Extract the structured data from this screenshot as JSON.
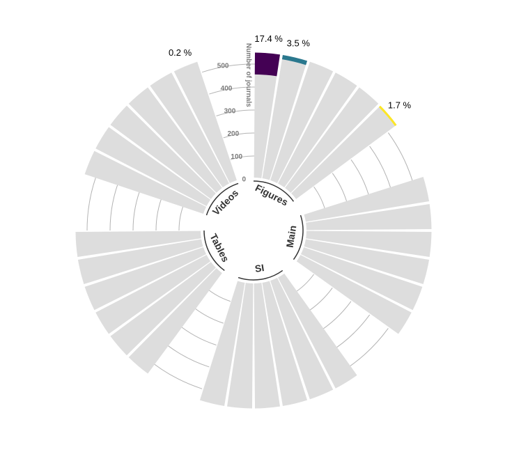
{
  "chart_data": {
    "type": "bar",
    "layout": "polar",
    "ylabel": "Number of journals",
    "ylim": [
      0,
      600
    ],
    "y_ticks": [
      "0",
      "100",
      "200",
      "300",
      "400",
      "500"
    ],
    "groups": [
      {
        "name": "Figures",
        "n_bars": 6
      },
      {
        "name": "Main",
        "n_bars": 6
      },
      {
        "name": "SI",
        "n_bars": 6
      },
      {
        "name": "Tables",
        "n_bars": 6
      },
      {
        "name": "Videos",
        "n_bars": 6
      }
    ],
    "total_values": [
      550,
      550,
      550,
      550,
      550,
      550,
      550,
      550,
      550,
      550,
      550,
      550,
      550,
      550,
      550,
      550,
      550,
      550,
      550,
      550,
      550,
      550,
      550,
      550,
      550,
      550,
      550,
      550,
      550,
      550
    ],
    "highlights": [
      {
        "bar_index": 0,
        "label": "17.4 %",
        "bottom": 455,
        "value": 550,
        "color": "#440154"
      },
      {
        "bar_index": 1,
        "label": "3.5 %",
        "bottom": 531,
        "value": 550,
        "color": "#2a788e"
      },
      {
        "bar_index": 5,
        "label": "1.7 %",
        "bottom": 541,
        "value": 550,
        "color": "#fde725"
      },
      {
        "bar_index": 29,
        "label": "0.2 %",
        "bottom": 549,
        "value": 550,
        "color": "#eeeeee"
      }
    ],
    "bar_color": "#dddddd",
    "grid": true
  }
}
